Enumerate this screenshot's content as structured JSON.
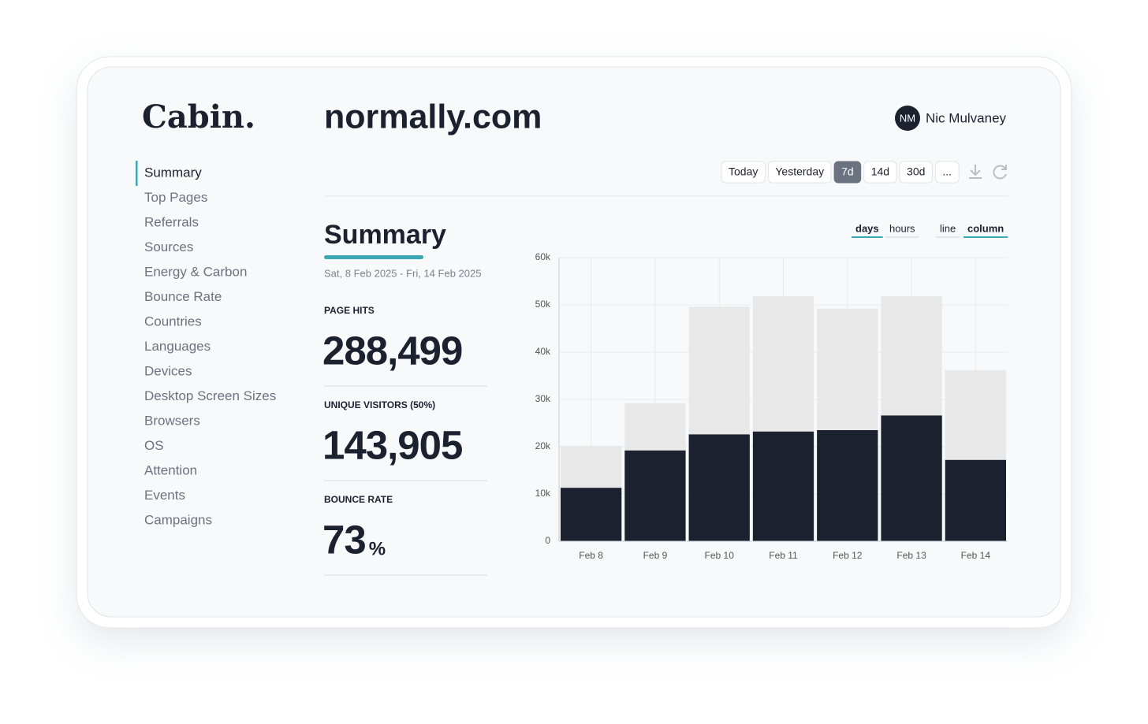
{
  "brand": "Cabin.",
  "site": "normally.com",
  "user": {
    "initials": "NM",
    "name": "Nic Mulvaney"
  },
  "nav": [
    "Summary",
    "Top Pages",
    "Referrals",
    "Sources",
    "Energy & Carbon",
    "Bounce Rate",
    "Countries",
    "Languages",
    "Devices",
    "Desktop Screen Sizes",
    "Browsers",
    "OS",
    "Attention",
    "Events",
    "Campaigns"
  ],
  "range_buttons": [
    "Today",
    "Yesterday",
    "7d",
    "14d",
    "30d",
    "..."
  ],
  "summary": {
    "title": "Summary",
    "date_range": "Sat, 8 Feb 2025 - Fri, 14 Feb 2025",
    "metrics": [
      {
        "label": "PAGE HITS",
        "value": "288,499"
      },
      {
        "label": "UNIQUE VISITORS (50%)",
        "value": "143,905"
      },
      {
        "label": "BOUNCE RATE",
        "value": "73",
        "unit": "%"
      }
    ]
  },
  "chart_toggles": {
    "granularity": [
      "days",
      "hours"
    ],
    "style": [
      "line",
      "column"
    ]
  },
  "chart_data": {
    "type": "bar",
    "overlap": true,
    "grid": true,
    "categories": [
      "Feb 8",
      "Feb 9",
      "Feb 10",
      "Feb 11",
      "Feb 12",
      "Feb 13",
      "Feb 14"
    ],
    "series": [
      {
        "color": "#e8e8e8",
        "values": [
          20200,
          29200,
          49600,
          51800,
          49200,
          51800,
          36200
        ]
      },
      {
        "color": "#1c2130",
        "values": [
          11300,
          19200,
          22600,
          23200,
          23500,
          26600,
          17200
        ]
      }
    ],
    "ylim": [
      0,
      60000
    ],
    "yticks": [
      0,
      {
        "value": 10000,
        "label": "10k"
      },
      {
        "value": 20000,
        "label": "20k"
      },
      {
        "value": 30000,
        "label": "30k"
      },
      {
        "value": 40000,
        "label": "40k"
      },
      {
        "value": 50000,
        "label": "50k"
      },
      {
        "value": 60000,
        "label": "60k"
      }
    ]
  }
}
